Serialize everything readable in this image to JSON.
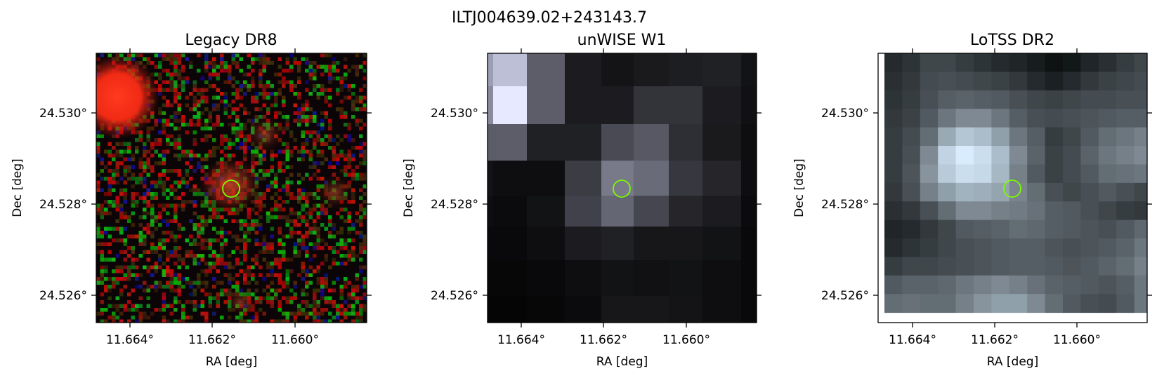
{
  "figure": {
    "title": "ILTJ004639.02+243143.7",
    "marker_color": "#7cfc00"
  },
  "panels": [
    {
      "title": "Legacy DR8",
      "xlabel": "RA [deg]",
      "ylabel": "Dec [deg]",
      "x_ticks": [
        "11.664°",
        "11.662°",
        "11.660°"
      ],
      "y_ticks": [
        "24.530°",
        "24.528°",
        "24.526°"
      ],
      "image": "RGB optical cutout with noisy red/green pixels, bright red source top-left, faint red sources at center and right"
    },
    {
      "title": "unWISE W1",
      "xlabel": "RA [deg]",
      "ylabel": "Dec [deg]",
      "x_ticks": [
        "11.664°",
        "11.662°",
        "11.660°"
      ],
      "y_ticks": [
        "24.530°",
        "24.528°",
        "24.526°"
      ],
      "image": "Coarse grayscale infrared cutout, bright pixel top-left, moderate source at center"
    },
    {
      "title": "LoTSS DR2",
      "xlabel": "RA [deg]",
      "ylabel": "Dec [deg]",
      "x_ticks": [
        "11.664°",
        "11.662°",
        "11.660°"
      ],
      "y_ticks": [
        "24.530°",
        "24.528°",
        "24.526°"
      ],
      "image": "Grayscale radio cutout, bright blob just left of center"
    }
  ]
}
